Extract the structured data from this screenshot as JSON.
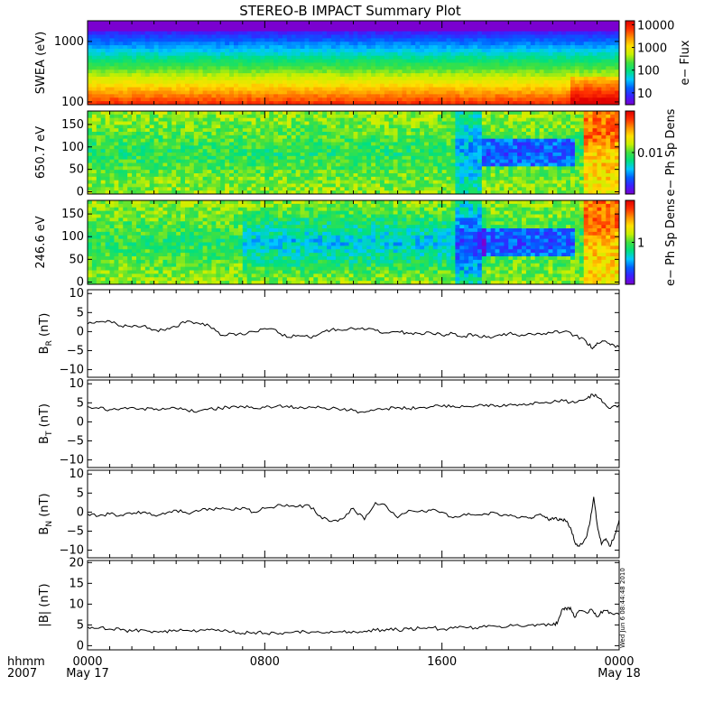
{
  "title": "STEREO-B IMPACT Summary Plot",
  "colors": {
    "axis": "#000000",
    "trace": "#000000",
    "background": "#ffffff"
  },
  "colormap": [
    "#7a00d0",
    "#3a20ff",
    "#0060ff",
    "#00c8ff",
    "#00e080",
    "#40e040",
    "#c8f000",
    "#ffe000",
    "#ff9000",
    "#ff3000",
    "#e00000"
  ],
  "x_axis": {
    "row1_label": "hhmm",
    "row2_label": "2007",
    "ticks": [
      {
        "hhmm": "0000",
        "date": "May 17"
      },
      {
        "hhmm": "0800",
        "date": ""
      },
      {
        "hhmm": "1600",
        "date": ""
      },
      {
        "hhmm": "0000",
        "date": "May 18"
      }
    ],
    "range_hours": [
      0,
      24
    ]
  },
  "timestamp": "Wed Jun  6 08:44:48 2010",
  "chart_data": [
    {
      "type": "heatmap",
      "ylabel": "SWEA (eV)",
      "yscale": "log",
      "ylim": [
        90,
        2200
      ],
      "yticks": [
        "1000",
        "100"
      ],
      "ytick_values": [
        1000,
        100
      ],
      "colorbar": {
        "label": "e− Flux",
        "scale": "log",
        "range": [
          3,
          15000
        ],
        "ticks": [
          "10000",
          "1000",
          "100",
          "10"
        ],
        "tick_values": [
          10000,
          1000,
          100,
          10
        ]
      }
    },
    {
      "type": "heatmap",
      "ylabel": "650.7 eV",
      "ylim": [
        -5,
        180
      ],
      "yticks": [
        "150",
        "100",
        "50",
        "0"
      ],
      "ytick_values": [
        150,
        100,
        50,
        0
      ],
      "colorbar": {
        "label": "e− Ph Sp Dens",
        "scale": "log",
        "range": [
          0.001,
          0.1
        ],
        "ticks": [
          "0.01"
        ],
        "tick_values": [
          0.01
        ]
      }
    },
    {
      "type": "heatmap",
      "ylabel": "246.6 eV",
      "ylim": [
        -5,
        180
      ],
      "yticks": [
        "150",
        "100",
        "50",
        "0"
      ],
      "ytick_values": [
        150,
        100,
        50,
        0
      ],
      "colorbar": {
        "label": "e− Ph Sp Dens",
        "scale": "log",
        "range": [
          0.1,
          10
        ],
        "ticks": [
          "1"
        ],
        "tick_values": [
          1
        ]
      }
    },
    {
      "type": "line",
      "ylabel": "B_R (nT)",
      "ylim": [
        -12,
        11
      ],
      "yticks": [
        "10",
        "5",
        "0",
        "−5",
        "−10"
      ],
      "ytick_values": [
        10,
        5,
        0,
        -5,
        -10
      ],
      "x": [
        0,
        0.5,
        1,
        1.5,
        2,
        2.5,
        3,
        3.5,
        4,
        4.5,
        5,
        5.5,
        6,
        6.5,
        7,
        7.5,
        8,
        8.5,
        9,
        9.5,
        10,
        10.5,
        11,
        11.5,
        12,
        12.5,
        13,
        13.5,
        14,
        14.5,
        15,
        15.5,
        16,
        16.5,
        17,
        17.5,
        18,
        18.5,
        19,
        19.5,
        20,
        20.5,
        21,
        21.5,
        22,
        22.5,
        22.8,
        23,
        23.3,
        23.6,
        24
      ],
      "y": [
        2,
        2.5,
        2.8,
        1.5,
        1.2,
        1.5,
        0.5,
        0.3,
        1.2,
        2.8,
        2.2,
        1.5,
        -1,
        -0.5,
        -0.8,
        0,
        0.8,
        0.5,
        -1.5,
        -1,
        -1.5,
        -0.5,
        0.5,
        0.3,
        0.8,
        0.5,
        0.3,
        -0.3,
        0,
        -0.5,
        -0.5,
        -0.3,
        -1,
        -0.5,
        -1.2,
        -0.8,
        -1.5,
        -1,
        -0.5,
        -1.2,
        -0.5,
        -0.8,
        -0.3,
        0,
        -1,
        -2.5,
        -4.5,
        -3,
        -2.5,
        -3.5,
        -4
      ]
    },
    {
      "type": "line",
      "ylabel": "B_T (nT)",
      "ylim": [
        -12,
        11
      ],
      "yticks": [
        "10",
        "5",
        "0",
        "−5",
        "−10"
      ],
      "ytick_values": [
        10,
        5,
        0,
        -5,
        -10
      ],
      "x": [
        0,
        0.5,
        1,
        1.5,
        2,
        2.5,
        3,
        3.5,
        4,
        4.5,
        5,
        5.5,
        6,
        6.5,
        7,
        7.5,
        8,
        8.5,
        9,
        9.5,
        10,
        10.5,
        11,
        11.5,
        12,
        12.5,
        13,
        13.5,
        14,
        14.5,
        15,
        15.5,
        16,
        16.5,
        17,
        17.5,
        18,
        18.5,
        19,
        19.5,
        20,
        20.5,
        21,
        21.5,
        22,
        22.5,
        22.8,
        23,
        23.3,
        23.6,
        24
      ],
      "y": [
        4,
        3.5,
        3.2,
        3.5,
        3.8,
        3.5,
        3.2,
        3.3,
        3.5,
        3,
        2.8,
        3.5,
        3.5,
        4,
        4,
        3.5,
        3.8,
        4,
        4.2,
        3.5,
        4,
        3.8,
        3.5,
        3.2,
        3,
        2.5,
        3.2,
        3.5,
        3.8,
        3.5,
        3.8,
        4,
        4,
        4.2,
        4,
        4.2,
        4.5,
        4.3,
        4.5,
        4.6,
        4.8,
        5,
        5.2,
        5.5,
        5,
        6,
        7.2,
        6.5,
        5,
        3.5,
        4.5
      ]
    },
    {
      "type": "line",
      "ylabel": "B_N (nT)",
      "ylim": [
        -12,
        11
      ],
      "yticks": [
        "10",
        "5",
        "0",
        "−5",
        "−10"
      ],
      "ytick_values": [
        10,
        5,
        0,
        -5,
        -10
      ],
      "x": [
        0,
        0.5,
        1,
        1.5,
        2,
        2.5,
        3,
        3.5,
        4,
        4.5,
        5,
        5.5,
        6,
        6.5,
        7,
        7.5,
        8,
        8.5,
        9,
        9.5,
        10,
        10.5,
        11,
        11.5,
        12,
        12.5,
        13,
        13.5,
        14,
        14.5,
        15,
        15.5,
        16,
        16.5,
        17,
        17.5,
        18,
        18.5,
        19,
        19.5,
        20,
        20.2,
        20.5,
        20.8,
        21,
        21.2,
        21.4,
        21.6,
        21.8,
        22,
        22.2,
        22.5,
        22.7,
        22.85,
        23,
        23.2,
        23.4,
        23.6,
        23.8,
        24
      ],
      "y": [
        -0.5,
        -1,
        -0.5,
        -0.8,
        -0.5,
        0,
        -0.8,
        -0.5,
        0.5,
        -0.3,
        0.2,
        1,
        0.8,
        0.5,
        1.2,
        0,
        1,
        1.5,
        2,
        1.5,
        1.8,
        -1,
        -2.5,
        -1.8,
        1,
        -2,
        2.5,
        1.5,
        -1.5,
        0.5,
        0.2,
        0.5,
        0,
        -1.5,
        -0.5,
        -0.8,
        -0.5,
        -0.3,
        -1,
        -1.5,
        -1.5,
        -1,
        -0.8,
        -2,
        -1.5,
        -2,
        -1.8,
        -2.5,
        -4,
        -8,
        -9,
        -6.8,
        -2,
        4,
        -3,
        -8.5,
        -7,
        -9,
        -6,
        -2
      ]
    },
    {
      "type": "line",
      "ylabel": "|B| (nT)",
      "ylim": [
        -1,
        20.5
      ],
      "yticks": [
        "20",
        "15",
        "10",
        "5",
        "0"
      ],
      "ytick_values": [
        20,
        15,
        10,
        5,
        0
      ],
      "x": [
        0,
        0.5,
        1,
        1.5,
        2,
        2.5,
        3,
        3.5,
        4,
        4.5,
        5,
        5.5,
        6,
        6.5,
        7,
        7.5,
        8,
        8.5,
        9,
        9.5,
        10,
        10.5,
        11,
        11.5,
        12,
        12.5,
        13,
        13.5,
        14,
        14.5,
        15,
        15.5,
        16,
        16.5,
        17,
        17.5,
        18,
        18.5,
        19,
        19.5,
        20,
        20.5,
        21,
        21.2,
        21.4,
        21.6,
        21.8,
        22,
        22.2,
        22.5,
        22.8,
        23,
        23.3,
        23.6,
        24
      ],
      "y": [
        4.5,
        4.2,
        4,
        3.8,
        3.5,
        3.8,
        3.5,
        3.6,
        3.5,
        3.7,
        3.5,
        3.8,
        3.5,
        3.3,
        3,
        3.2,
        3,
        3,
        3.2,
        3.5,
        3,
        3.2,
        3.5,
        3.3,
        3.5,
        3.5,
        3.7,
        4,
        3.8,
        4,
        4.2,
        4.3,
        4,
        4.2,
        4.5,
        4.3,
        4.5,
        4.6,
        4.7,
        4.8,
        5,
        5.2,
        5,
        5.3,
        8.5,
        9,
        9.2,
        6.8,
        8.5,
        8,
        8.5,
        7,
        8.5,
        8,
        7.5
      ]
    }
  ]
}
